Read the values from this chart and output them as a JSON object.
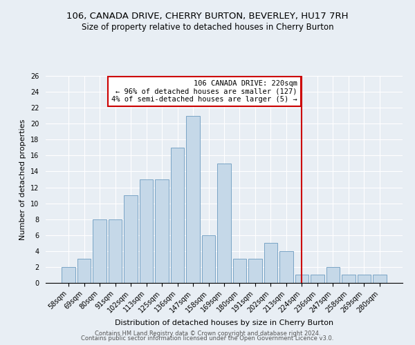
{
  "title": "106, CANADA DRIVE, CHERRY BURTON, BEVERLEY, HU17 7RH",
  "subtitle": "Size of property relative to detached houses in Cherry Burton",
  "xlabel": "Distribution of detached houses by size in Cherry Burton",
  "ylabel": "Number of detached properties",
  "bar_color": "#c5d8e8",
  "bar_edge_color": "#6a9abf",
  "background_color": "#e8eef4",
  "grid_color": "#ffffff",
  "annotation_title": "106 CANADA DRIVE: 220sqm",
  "annotation_line1": "← 96% of detached houses are smaller (127)",
  "annotation_line2": "4% of semi-detached houses are larger (5) →",
  "annotation_box_color": "#ffffff",
  "annotation_box_edge": "#cc0000",
  "marker_line_color": "#cc0000",
  "categories": [
    "58sqm",
    "69sqm",
    "80sqm",
    "91sqm",
    "102sqm",
    "113sqm",
    "125sqm",
    "136sqm",
    "147sqm",
    "158sqm",
    "169sqm",
    "180sqm",
    "191sqm",
    "202sqm",
    "213sqm",
    "224sqm",
    "236sqm",
    "247sqm",
    "258sqm",
    "269sqm",
    "280sqm"
  ],
  "values": [
    2,
    3,
    8,
    8,
    11,
    13,
    13,
    17,
    21,
    6,
    15,
    3,
    3,
    5,
    4,
    1,
    1,
    2,
    1,
    1,
    1
  ],
  "ylim": [
    0,
    26
  ],
  "yticks": [
    0,
    2,
    4,
    6,
    8,
    10,
    12,
    14,
    16,
    18,
    20,
    22,
    24,
    26
  ],
  "footer_line1": "Contains HM Land Registry data © Crown copyright and database right 2024.",
  "footer_line2": "Contains public sector information licensed under the Open Government Licence v3.0.",
  "title_fontsize": 9.5,
  "subtitle_fontsize": 8.5,
  "axis_label_fontsize": 8,
  "tick_fontsize": 7,
  "footer_fontsize": 6,
  "annotation_fontsize": 7.5
}
